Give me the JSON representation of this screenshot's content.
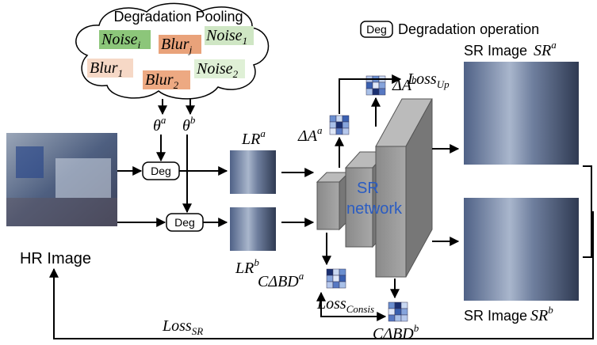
{
  "legend": {
    "box": "Deg",
    "text": "Degradation operation"
  },
  "pool": {
    "title": "Degradation Pooling",
    "items": [
      {
        "base": "Noise",
        "sub": "i"
      },
      {
        "base": "Blur",
        "sub": "j"
      },
      {
        "base": "Noise",
        "sub": "1"
      },
      {
        "base": "Blur",
        "sub": "1"
      },
      {
        "base": "Blur",
        "sub": "2"
      },
      {
        "base": "Noise",
        "sub": "2"
      }
    ]
  },
  "theta": [
    {
      "base": "θ",
      "sup": "a"
    },
    {
      "base": "θ",
      "sup": "b"
    }
  ],
  "deg_boxes": [
    "Deg",
    "Deg"
  ],
  "hr_label": "HR Image",
  "lr": [
    {
      "base": "LR",
      "sup": "a"
    },
    {
      "base": "LR",
      "sup": "b"
    }
  ],
  "delta": [
    {
      "base": "ΔA",
      "sup": "a"
    },
    {
      "base": "ΔA",
      "sup": "b"
    }
  ],
  "cdelta": [
    {
      "base": "CΔBD",
      "sup": "a"
    },
    {
      "base": "CΔBD",
      "sup": "b"
    }
  ],
  "losses": {
    "up": {
      "base": "Loss",
      "sub": "Up"
    },
    "consis": {
      "base": "Loss",
      "sub": "Consis"
    },
    "sr": {
      "base": "Loss",
      "sub": "SR"
    }
  },
  "network": [
    "SR",
    "network"
  ],
  "sr_images": [
    {
      "label": "SR Image",
      "base": "SR",
      "sup": "a"
    },
    {
      "label": "SR Image",
      "base": "SR",
      "sup": "b"
    }
  ]
}
